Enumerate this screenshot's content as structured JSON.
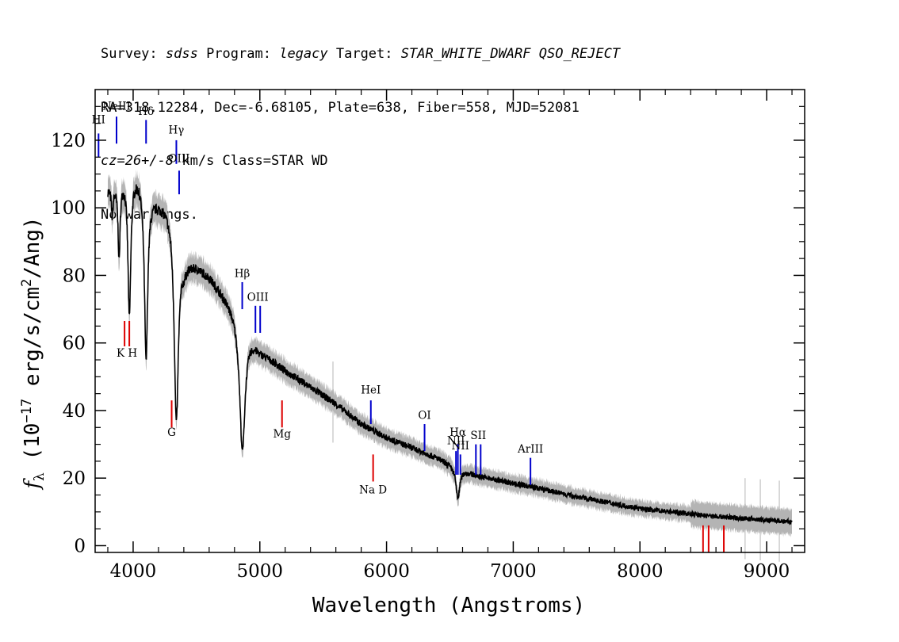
{
  "header": {
    "line1": [
      {
        "text": "Survey: ",
        "italic": false
      },
      {
        "text": "sdss",
        "italic": true
      },
      {
        "text": " Program: ",
        "italic": false
      },
      {
        "text": "legacy",
        "italic": true
      },
      {
        "text": " Target: ",
        "italic": false
      },
      {
        "text": "STAR_WHITE_DWARF QSO_REJECT",
        "italic": true
      }
    ],
    "line2": "RA=318.12284, Dec=-6.68105, Plate=638, Fiber=558, MJD=52081",
    "line3": [
      {
        "text": "cz=26+/-8",
        "italic": true
      },
      {
        "text": " km/s Class=STAR WD",
        "italic": false
      }
    ],
    "line4": "No warnings."
  },
  "chart_data": {
    "type": "line",
    "xlabel": "Wavelength (Angstroms)",
    "ylabel_parts": {
      "f": "f",
      "sub": "λ",
      "a": " (10",
      "exp1": "−17",
      "b": " erg/s/cm",
      "exp2": "2",
      "c": "/Ang)"
    },
    "xlim": [
      3700,
      9300
    ],
    "ylim": [
      -2,
      135
    ],
    "x_ticks": [
      4000,
      5000,
      6000,
      7000,
      8000,
      9000
    ],
    "x_tick_labels": [
      "4000",
      "5000",
      "6000",
      "7000",
      "8000",
      "9000"
    ],
    "y_ticks": [
      0,
      20,
      40,
      60,
      80,
      100,
      120
    ],
    "y_tick_labels": [
      "0",
      "20",
      "40",
      "60",
      "80",
      "100",
      "120"
    ],
    "spectrum_color": "#000000",
    "noise_color": "#b4b4b4",
    "emission_color": "#0000cc",
    "absorption_color": "#dd0000",
    "continuum": [
      [
        3800,
        106
      ],
      [
        3850,
        107
      ],
      [
        3900,
        109
      ],
      [
        3950,
        111
      ],
      [
        4000,
        111
      ],
      [
        4050,
        110
      ],
      [
        4100,
        108
      ],
      [
        4150,
        104
      ],
      [
        4200,
        102
      ],
      [
        4250,
        101
      ],
      [
        4300,
        99
      ],
      [
        4350,
        93
      ],
      [
        4400,
        84
      ],
      [
        4450,
        84
      ],
      [
        4500,
        83
      ],
      [
        4600,
        80
      ],
      [
        4700,
        75
      ],
      [
        4800,
        70
      ],
      [
        4900,
        64
      ],
      [
        5000,
        58
      ],
      [
        5200,
        52
      ],
      [
        5400,
        47
      ],
      [
        5600,
        42
      ],
      [
        5800,
        36
      ],
      [
        6000,
        32
      ],
      [
        6200,
        29
      ],
      [
        6400,
        26
      ],
      [
        6500,
        24
      ],
      [
        6700,
        21
      ],
      [
        6800,
        20
      ],
      [
        7000,
        18.5
      ],
      [
        7200,
        17
      ],
      [
        7500,
        14.5
      ],
      [
        8000,
        11
      ],
      [
        8500,
        9
      ],
      [
        9000,
        7.5
      ],
      [
        9200,
        7
      ]
    ],
    "absorption_dips": [
      {
        "center": 3835,
        "depth": 8,
        "width": 8
      },
      {
        "center": 3889,
        "depth": 22,
        "width": 10
      },
      {
        "center": 3970,
        "depth": 42,
        "width": 14
      },
      {
        "center": 4102,
        "depth": 52,
        "width": 16
      },
      {
        "center": 4341,
        "depth": 57,
        "width": 20
      },
      {
        "center": 4862,
        "depth": 38,
        "width": 26
      },
      {
        "center": 6563,
        "depth": 9,
        "width": 18
      }
    ],
    "emission_lines": [
      {
        "label": "HI",
        "wave": 3727,
        "y1": 115,
        "y2": 122,
        "label_y": 125,
        "doubled": false
      },
      {
        "label": "NeIII",
        "wave": 3869,
        "y1": 119,
        "y2": 127,
        "label_y": 129,
        "doubled": false
      },
      {
        "label": "Hδ",
        "wave": 4102,
        "y1": 119,
        "y2": 126,
        "label_y": 127.5,
        "doubled": false
      },
      {
        "label": "Hγ",
        "wave": 4341,
        "y1": 113,
        "y2": 120,
        "label_y": 122,
        "doubled": false
      },
      {
        "label": "OIII",
        "wave": 4363,
        "y1": 104,
        "y2": 111,
        "label_y": 113.5,
        "doubled": false
      },
      {
        "label": "Hβ",
        "wave": 4861,
        "y1": 70,
        "y2": 78,
        "label_y": 79.5,
        "doubled": false
      },
      {
        "label": "OIII",
        "wave": 4984,
        "y1": 63,
        "y2": 71,
        "label_y": 72.5,
        "doubled": true
      },
      {
        "label": "HeI",
        "wave": 5876,
        "y1": 36,
        "y2": 43,
        "label_y": 45,
        "doubled": false
      },
      {
        "label": "OI",
        "wave": 6300,
        "y1": 28,
        "y2": 36,
        "label_y": 37.5,
        "doubled": false
      },
      {
        "label": "NII",
        "wave": 6548,
        "y1": 21,
        "y2": 28,
        "label_y": 30,
        "doubled": false
      },
      {
        "label": "Hα",
        "wave": 6563,
        "y1": 21,
        "y2": 30,
        "label_y": 32.5,
        "doubled": false
      },
      {
        "label": "NII",
        "wave": 6583,
        "y1": 21,
        "y2": 27,
        "label_y": 28.5,
        "doubled": false
      },
      {
        "label": "SII",
        "wave": 6724,
        "y1": 21,
        "y2": 30,
        "label_y": 31.5,
        "doubled": true
      },
      {
        "label": "ArIII",
        "wave": 7136,
        "y1": 18,
        "y2": 26,
        "label_y": 27.5,
        "doubled": false
      }
    ],
    "absorption_lines": [
      {
        "label": "K H",
        "wave": 3951,
        "y1": 59,
        "y2": 66.5,
        "label_y": 56,
        "doubled": true
      },
      {
        "label": "G",
        "wave": 4304,
        "y1": 35,
        "y2": 43,
        "label_y": 32.5,
        "doubled": false
      },
      {
        "label": "Mg",
        "wave": 5175,
        "y1": 35,
        "y2": 43,
        "label_y": 32,
        "doubled": false
      },
      {
        "label": "Na D",
        "wave": 5894,
        "y1": 19,
        "y2": 27,
        "label_y": 15.5,
        "doubled": false
      },
      {
        "label": "",
        "wave": 8498,
        "y1": -2,
        "y2": 6,
        "label_y": 0,
        "doubled": false
      },
      {
        "label": "",
        "wave": 8542,
        "y1": -2,
        "y2": 6,
        "label_y": 0,
        "doubled": false
      },
      {
        "label": "",
        "wave": 8662,
        "y1": -2,
        "y2": 6,
        "label_y": 0,
        "doubled": false
      }
    ]
  }
}
